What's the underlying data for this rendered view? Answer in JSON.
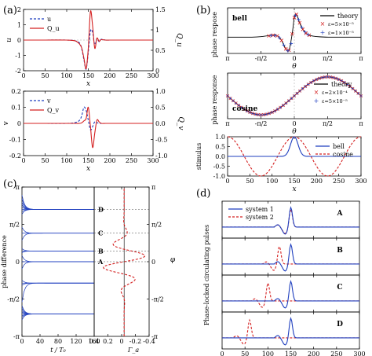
{
  "panel_labels": {
    "a": "(a)",
    "b": "(b)",
    "c": "(c)",
    "d": "(d)"
  },
  "colors": {
    "blue": "#1f3fbf",
    "red": "#d42020",
    "black": "#000000"
  },
  "chart_data": [
    {
      "id": "a1",
      "type": "line",
      "x": [
        0,
        50,
        100,
        120,
        130,
        135,
        140,
        145,
        150,
        155,
        160,
        165,
        170,
        175,
        180,
        190,
        200,
        250,
        300
      ],
      "xlim": [
        0,
        300
      ],
      "ylim": [
        -2,
        2
      ],
      "y2lim": [
        0,
        1.5
      ],
      "xticks": [
        "0",
        "50",
        "100",
        "150",
        "200",
        "250",
        "300"
      ],
      "yticks": [
        "-2",
        "-1",
        "0",
        "1",
        "2"
      ],
      "y2ticks": [
        "0",
        "0.5",
        "1",
        "1.5"
      ],
      "xlabel": "x",
      "ylabel": "u",
      "y2label": "Q_u",
      "legend": [
        "u",
        "Q_u"
      ],
      "series": [
        {
          "name": "u",
          "style": "dashed",
          "color": "blue",
          "values": [
            0,
            0,
            0,
            -0.05,
            -0.2,
            -0.6,
            -1.3,
            -1.9,
            -0.8,
            0.6,
            0.5,
            -0.3,
            0.1,
            -0.1,
            0.05,
            0,
            0,
            0,
            0
          ]
        },
        {
          "name": "Q_u",
          "style": "solid",
          "color": "red",
          "values": [
            0.75,
            0.75,
            0.75,
            0.73,
            0.65,
            0.55,
            0.3,
            0.05,
            0.55,
            1.45,
            1.1,
            0.55,
            0.8,
            0.72,
            0.76,
            0.75,
            0.75,
            0.75,
            0.75
          ]
        }
      ]
    },
    {
      "id": "a2",
      "type": "line",
      "x": [
        0,
        50,
        100,
        120,
        130,
        135,
        140,
        145,
        150,
        155,
        160,
        165,
        170,
        175,
        180,
        190,
        200,
        250,
        300
      ],
      "xlim": [
        0,
        300
      ],
      "ylim": [
        -0.2,
        0.2
      ],
      "y2lim": [
        -1,
        1
      ],
      "xticks": [
        "0",
        "50",
        "100",
        "150",
        "200",
        "250",
        "300"
      ],
      "yticks": [
        "-0.2",
        "-0.1",
        "0",
        "0.1",
        "0.2"
      ],
      "y2ticks": [
        "-1.0",
        "-0.5",
        "0.0",
        "0.5",
        "1.0"
      ],
      "xlabel": "x",
      "ylabel": "v",
      "y2label": "Q_v",
      "legend": [
        "v",
        "Q_v"
      ],
      "series": [
        {
          "name": "v",
          "style": "dashed",
          "color": "blue",
          "values": [
            0,
            0,
            0,
            0.005,
            0.02,
            0.05,
            0.1,
            0.08,
            0.02,
            -0.04,
            -0.02,
            0.01,
            0.005,
            0,
            0,
            0,
            0,
            0,
            0
          ]
        },
        {
          "name": "Q_v",
          "style": "solid",
          "color": "red",
          "values": [
            0,
            0,
            0,
            0,
            0,
            0.02,
            0.08,
            0.15,
            0.5,
            -0.1,
            -0.75,
            -0.3,
            0.1,
            0.05,
            0,
            0,
            0,
            0,
            0
          ]
        }
      ]
    },
    {
      "id": "b1",
      "type": "scatter",
      "xlim": [
        -3.1416,
        3.1416
      ],
      "ylim": [
        -0.25,
        0.45
      ],
      "xticks": [
        "π",
        "-π/2",
        "0",
        "π/2",
        "π"
      ],
      "xlabel": "θ",
      "ylabel": "phase respose",
      "annotation": "bell",
      "legend": [
        "theory",
        "ε=5×10⁻⁵",
        "ε=1×10⁻⁵"
      ],
      "series": [
        {
          "name": "theory",
          "color": "black",
          "x": [
            -3.14,
            -2.0,
            -1.5,
            -1.0,
            -0.8,
            -0.6,
            -0.4,
            -0.25,
            -0.1,
            0.0,
            0.1,
            0.25,
            0.4,
            0.55,
            0.7,
            0.9,
            1.2,
            1.6,
            2.0,
            3.14
          ],
          "y": [
            0,
            0,
            0.01,
            0.03,
            0.02,
            -0.05,
            -0.18,
            -0.2,
            0.05,
            0.3,
            0.35,
            0.22,
            0.12,
            0.06,
            0.03,
            0.015,
            0.005,
            0,
            0,
            0
          ]
        },
        {
          "name": "ε=5×10⁻⁵",
          "color": "red",
          "marker": "x",
          "x": [
            -1.2,
            -1.0,
            -0.8,
            -0.6,
            -0.4,
            -0.25,
            -0.1,
            0.0,
            0.1,
            0.25,
            0.4,
            0.55,
            0.7
          ],
          "y": [
            0.02,
            0.03,
            0.02,
            -0.05,
            -0.18,
            -0.2,
            0.05,
            0.3,
            0.35,
            0.22,
            0.12,
            0.06,
            0.03
          ]
        },
        {
          "name": "ε=1×10⁻⁵",
          "color": "blue",
          "marker": "+",
          "x": [
            -1.1,
            -0.9,
            -0.7,
            -0.5,
            -0.3,
            -0.15,
            0.05,
            0.2,
            0.35,
            0.5,
            0.65
          ],
          "y": [
            0.025,
            0.025,
            -0.01,
            -0.12,
            -0.21,
            -0.1,
            0.33,
            0.27,
            0.15,
            0.08,
            0.04
          ]
        }
      ]
    },
    {
      "id": "b2",
      "type": "scatter",
      "xlim": [
        -3.1416,
        3.1416
      ],
      "ylim": [
        -0.12,
        0.12
      ],
      "xticks": [
        "π",
        "-π/2",
        "0",
        "π/2",
        "π"
      ],
      "xlabel": "θ",
      "ylabel": "phase response",
      "annotation": "cosine",
      "legend": [
        "theory",
        "ε=2×10⁻⁴",
        "ε=5×10⁻⁵"
      ],
      "curve": "0.1*sin(theta)",
      "series": [
        {
          "name": "theory",
          "color": "black"
        },
        {
          "name": "ε=2×10⁻⁴",
          "color": "red",
          "marker": "x"
        },
        {
          "name": "ε=5×10⁻⁵",
          "color": "blue",
          "marker": "+"
        }
      ]
    },
    {
      "id": "b3",
      "type": "line",
      "xlim": [
        0,
        300
      ],
      "ylim": [
        -1,
        1
      ],
      "xticks": [
        "0",
        "50",
        "100",
        "150",
        "200",
        "250",
        "300"
      ],
      "yticks": [
        "-1.0",
        "-0.5",
        "0.0",
        "0.5",
        "1.0"
      ],
      "xlabel": "x",
      "ylabel": "stimulus",
      "legend": [
        "bell",
        "cosine"
      ],
      "series": [
        {
          "name": "bell",
          "style": "solid",
          "color": "blue",
          "shape": "gaussian",
          "center": 150,
          "width": 12
        },
        {
          "name": "cosine",
          "style": "dashed",
          "color": "red",
          "shape": "cosine",
          "peak": 150,
          "period": 150
        }
      ]
    },
    {
      "id": "c1",
      "type": "line",
      "xlim": [
        0,
        175
      ],
      "ylim": [
        -3.1416,
        3.1416
      ],
      "xticks": [
        "0",
        "40",
        "80",
        "120",
        "160"
      ],
      "yticks": [
        "-π",
        "-π/2",
        "0",
        "π/2",
        "π"
      ],
      "xlabel": "t / T₀",
      "ylabel": "phase difference",
      "trajectories": "converging lines onto fixed points A, B, C, D"
    },
    {
      "id": "c2",
      "type": "line",
      "xlim": [
        0.6,
        -0.5
      ],
      "ylim": [
        -3.1416,
        3.1416
      ],
      "xticks": [
        "0.4",
        "0.2",
        "0",
        "-0.2",
        "-0.4"
      ],
      "yticks": [
        "-π",
        "-π/2",
        "0",
        "π/2",
        "π"
      ],
      "xlabel": "Γ_a",
      "ylabel": "φ",
      "fixed_points": [
        "A",
        "B",
        "C",
        "D"
      ]
    },
    {
      "id": "d",
      "type": "line",
      "xlim": [
        0,
        300
      ],
      "xticks": [
        "0",
        "50",
        "100",
        "150",
        "200",
        "250",
        "300"
      ],
      "xlabel": "x",
      "ylabel": "Phase-locked circulating pulses",
      "legend": [
        "system 1",
        "system 2"
      ],
      "subpanels": [
        {
          "label": "A",
          "offset2": 0
        },
        {
          "label": "B",
          "offset2": -25
        },
        {
          "label": "C",
          "offset2": -50
        },
        {
          "label": "D",
          "offset2": -90
        }
      ]
    }
  ]
}
